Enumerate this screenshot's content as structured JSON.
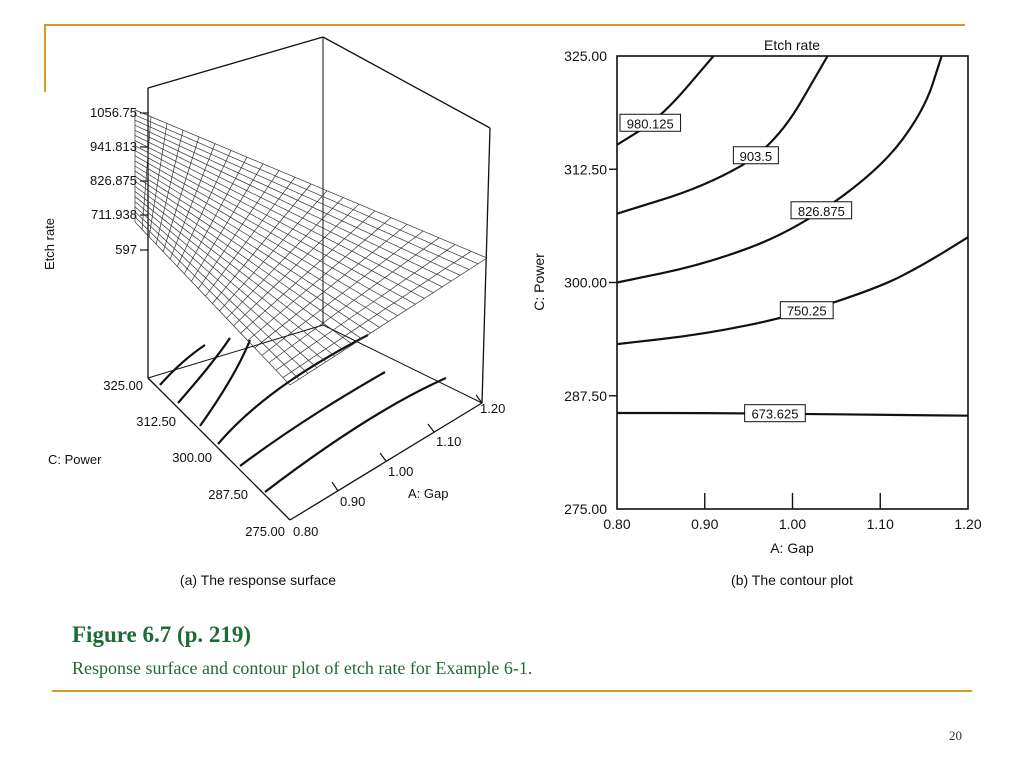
{
  "slide": {
    "caption_title": "Figure 6.7  (p. 219)",
    "caption_text": "Response surface and contour plot of etch rate for Example 6-1.",
    "page_number": "20",
    "accent_color": "#d59a1f",
    "caption_color": "#1d6b35"
  },
  "chart_data": [
    {
      "type": "surface",
      "caption": "(a) The response surface",
      "zlabel": "Etch rate",
      "z_ticks": [
        "1056.75",
        "941.813",
        "826.875",
        "711.938",
        "597"
      ],
      "power_label": "C: Power",
      "power_ticks": [
        "325.00",
        "312.50",
        "300.00",
        "287.50",
        "275.00"
      ],
      "gap_label": "A: Gap",
      "gap_ticks": [
        "0.80",
        "0.90",
        "1.00",
        "1.10",
        "1.20"
      ],
      "x_range": [
        0.8,
        1.2
      ],
      "y_range": [
        275,
        325
      ],
      "z_range": [
        597,
        1056.75
      ]
    },
    {
      "type": "contour",
      "title": "Etch rate",
      "caption": "(b) The contour plot",
      "xlabel": "A: Gap",
      "ylabel": "C: Power",
      "xlim": [
        0.8,
        1.2
      ],
      "ylim": [
        275,
        325
      ],
      "x_ticks": [
        "0.80",
        "0.90",
        "1.00",
        "1.10",
        "1.20"
      ],
      "y_ticks": [
        "275.00",
        "287.50",
        "300.00",
        "312.50",
        "325.00"
      ],
      "contours": [
        {
          "label": "673.625",
          "level": 673.625,
          "points": [
            [
              0.8,
              285.6
            ],
            [
              0.9,
              285.6
            ],
            [
              1.0,
              285.5
            ],
            [
              1.1,
              285.4
            ],
            [
              1.2,
              285.3
            ]
          ]
        },
        {
          "label": "750.25",
          "level": 750.25,
          "points": [
            [
              0.8,
              293.2
            ],
            [
              0.9,
              294.3
            ],
            [
              1.0,
              296.3
            ],
            [
              1.1,
              299.5
            ],
            [
              1.15,
              302.0
            ],
            [
              1.2,
              305.0
            ]
          ]
        },
        {
          "label": "826.875",
          "level": 826.875,
          "points": [
            [
              0.8,
              300.0
            ],
            [
              0.9,
              302.0
            ],
            [
              1.0,
              305.6
            ],
            [
              1.1,
              312.5
            ],
            [
              1.15,
              319.0
            ],
            [
              1.17,
              325.0
            ]
          ]
        },
        {
          "label": "903.5",
          "level": 903.5,
          "points": [
            [
              0.8,
              307.6
            ],
            [
              0.9,
              310.6
            ],
            [
              0.98,
              315.0
            ],
            [
              1.04,
              325.0
            ]
          ]
        },
        {
          "label": "980.125",
          "level": 980.125,
          "points": [
            [
              0.8,
              315.2
            ],
            [
              0.85,
              318.2
            ],
            [
              0.91,
              325.0
            ]
          ]
        }
      ]
    }
  ]
}
